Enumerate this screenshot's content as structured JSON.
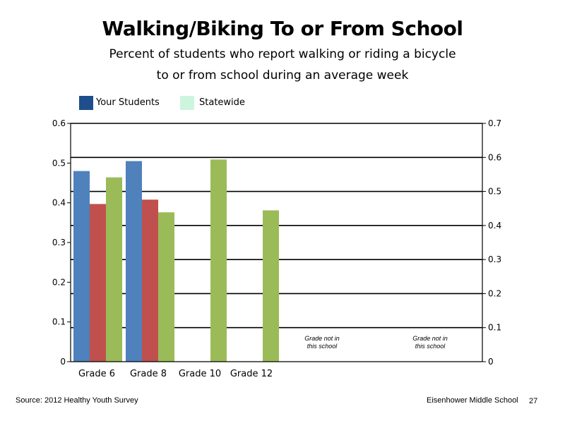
{
  "title": "Walking/Biking To or From School",
  "subtitle_line1": "Percent of students who report walking or riding a bicycle",
  "subtitle_line2": "to or from school during an average week",
  "legend": [
    {
      "label": "Your Students",
      "color": "#1f4e8c"
    },
    {
      "label": "Statewide",
      "color": "#ccf5dd"
    }
  ],
  "footer": {
    "source": "Source: 2012 Healthy Youth Survey",
    "school": "Eisenhower Middle  School",
    "page": "27"
  },
  "chart_data": {
    "type": "bar",
    "categories": [
      "Grade 6",
      "Grade 8",
      "Grade 10",
      "Grade 12"
    ],
    "series": [
      {
        "color": "#4f81bd",
        "axis": "left",
        "values": [
          0.48,
          0.505,
          null,
          null
        ]
      },
      {
        "color": "#c0504d",
        "axis": "left",
        "values": [
          0.397,
          0.408,
          null,
          null
        ]
      },
      {
        "color": "#9bbb59",
        "axis": "left",
        "values": [
          0.464,
          0.376,
          0.509,
          0.381
        ]
      }
    ],
    "left_axis": {
      "ylim": [
        0,
        0.6
      ],
      "ticks": [
        "0",
        "0.1",
        "0.2",
        "0.3",
        "0.4",
        "0.5",
        "0.6"
      ]
    },
    "right_axis": {
      "ylim": [
        0,
        0.7
      ],
      "ticks": [
        "0",
        "0.1",
        "0.2",
        "0.3",
        "0.4",
        "0.5",
        "0.6",
        "0.7"
      ]
    },
    "annotations": [
      {
        "line1": "Grade not in",
        "line2": "this school"
      },
      {
        "line1": "Grade not in",
        "line2": "this school"
      }
    ],
    "grid": "horizontal, right axis"
  }
}
